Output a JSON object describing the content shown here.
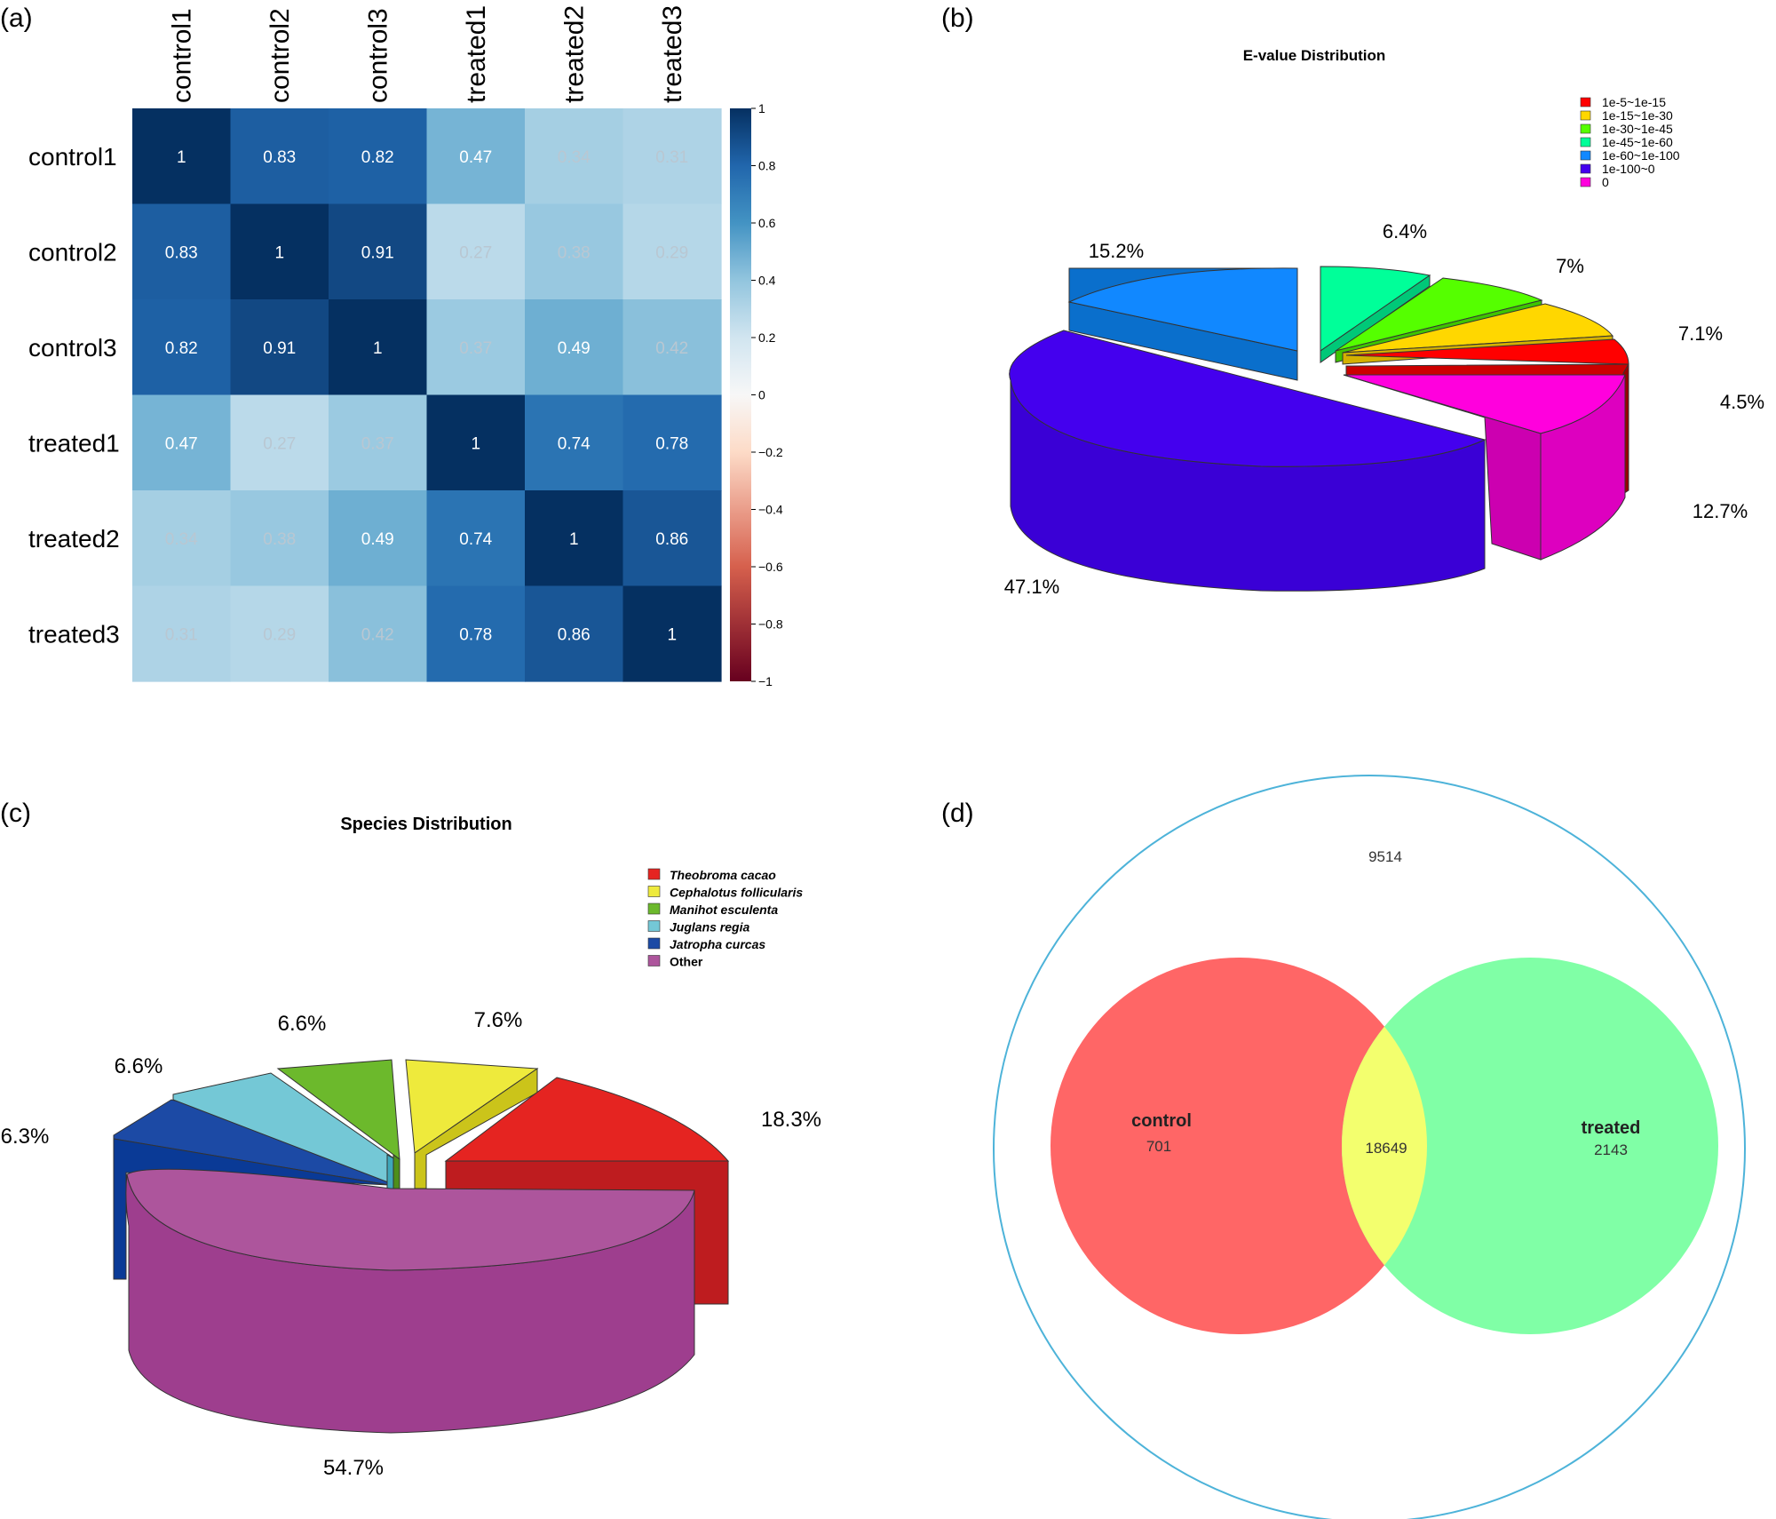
{
  "chart_data": [
    {
      "panel_label": "(a)",
      "type": "heatmap",
      "rows": [
        "control1",
        "control2",
        "control3",
        "treated1",
        "treated2",
        "treated3"
      ],
      "columns": [
        "control1",
        "control2",
        "control3",
        "treated1",
        "treated2",
        "treated3"
      ],
      "values": [
        [
          1,
          0.83,
          0.82,
          0.47,
          0.34,
          0.31
        ],
        [
          0.83,
          1,
          0.91,
          0.27,
          0.38,
          0.29
        ],
        [
          0.82,
          0.91,
          1,
          0.37,
          0.49,
          0.42
        ],
        [
          0.47,
          0.27,
          0.37,
          1,
          0.74,
          0.78
        ],
        [
          0.34,
          0.38,
          0.49,
          0.74,
          1,
          0.86
        ],
        [
          0.31,
          0.29,
          0.42,
          0.78,
          0.86,
          1
        ]
      ],
      "colorbar_range": [
        -1,
        1
      ],
      "colorbar_ticks": [
        "1",
        "0.8",
        "0.6",
        "0.4",
        "0.2",
        "0",
        "−0.2",
        "−0.4",
        "−0.6",
        "−0.8",
        "−1"
      ]
    },
    {
      "panel_label": "(b)",
      "type": "pie",
      "title": "E-value Distribution",
      "legend_position": "top-right",
      "slices": [
        {
          "label": "1e-5~1e-15",
          "value": 4.5,
          "text": "4.5%",
          "color": "#ff0000"
        },
        {
          "label": "1e-15~1e-30",
          "value": 7.1,
          "text": "7.1%",
          "color": "#ffd700"
        },
        {
          "label": "1e-30~1e-45",
          "value": 7,
          "text": "7%",
          "color": "#55ff00"
        },
        {
          "label": "1e-45~1e-60",
          "value": 6.4,
          "text": "6.4%",
          "color": "#00ff99"
        },
        {
          "label": "1e-60~1e-100",
          "value": 15.2,
          "text": "15.2%",
          "color": "#1188ff"
        },
        {
          "label": "1e-100~0",
          "value": 47.1,
          "text": "47.1%",
          "color": "#4400ee"
        },
        {
          "label": "0",
          "value": 12.7,
          "text": "12.7%",
          "color": "#ff00dd"
        }
      ]
    },
    {
      "panel_label": "(c)",
      "type": "pie",
      "title": "Species Distribution",
      "legend_position": "top-right",
      "slices": [
        {
          "label": "Theobroma cacao",
          "value": 18.3,
          "text": "18.3%",
          "color": "#e52421"
        },
        {
          "label": "Cephalotus follicularis",
          "value": 7.6,
          "text": "7.6%",
          "color": "#eeea3c"
        },
        {
          "label": "Manihot esculenta",
          "value": 6.6,
          "text": "6.6%",
          "color": "#6cb92c"
        },
        {
          "label": "Juglans regia",
          "value": 6.6,
          "text": "6.6%",
          "color": "#74c8d6"
        },
        {
          "label": "Jatropha curcas",
          "value": 6.3,
          "text": "6.3%",
          "color": "#1c4aa5"
        },
        {
          "label": "Other",
          "value": 54.7,
          "text": "54.7%",
          "color": "#ad559c"
        }
      ]
    },
    {
      "panel_label": "(d)",
      "type": "venn",
      "total_outside": "9514",
      "sets": [
        {
          "name": "control",
          "only": "701",
          "color": "#ff6666"
        },
        {
          "name": "treated",
          "only": "2143",
          "color": "#80ffa6"
        }
      ],
      "intersection": "18649",
      "intersection_color": "#f3ff6e",
      "universe_outline_color": "#4db3d9"
    }
  ]
}
